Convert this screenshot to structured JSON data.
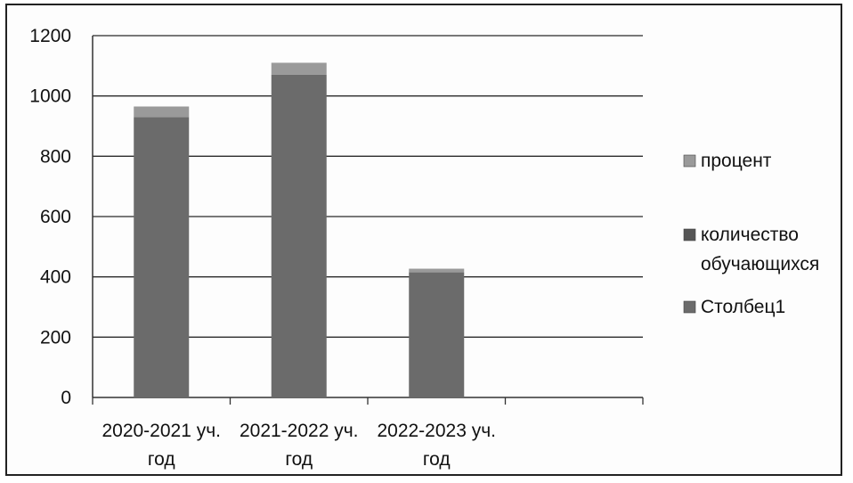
{
  "chart_data": {
    "type": "bar",
    "stacked": true,
    "categories": [
      [
        "2020-2021 уч.",
        "год"
      ],
      [
        "2021-2022 уч.",
        "год"
      ],
      [
        "2022-2023 уч.",
        "год"
      ]
    ],
    "series": [
      {
        "name": "Столбец1",
        "values": [
          0,
          0,
          0
        ],
        "color": "#6b6b6b"
      },
      {
        "name": "количество обучающихся",
        "values": [
          930,
          1070,
          415
        ],
        "color": "#6b6b6b"
      },
      {
        "name": "процент",
        "values": [
          35,
          40,
          12
        ],
        "color": "#9a9a9a"
      }
    ],
    "legend": [
      {
        "lines": [
          "процент"
        ],
        "color": "#9a9a9a"
      },
      {
        "lines": [
          "количество",
          "обучающихся"
        ],
        "color": "#555555"
      },
      {
        "lines": [
          "Столбец1"
        ],
        "color": "#6b6b6b"
      }
    ],
    "yticks": [
      "0",
      "200",
      "400",
      "600",
      "800",
      "1000",
      "1200"
    ],
    "ylim": [
      0,
      1200
    ],
    "grid": true,
    "legend_position": "right",
    "title": "",
    "xlabel": "",
    "ylabel": ""
  }
}
